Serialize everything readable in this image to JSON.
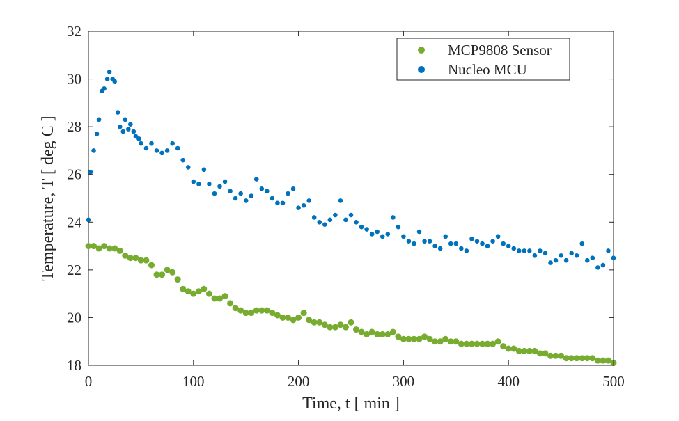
{
  "chart_data": {
    "type": "scatter",
    "xlabel": "Time, t [ min ]",
    "ylabel": "Temperature, T [ deg C ]",
    "xlim": [
      0,
      500
    ],
    "xticks": [
      0,
      100,
      200,
      300,
      400,
      500
    ],
    "ylim": [
      18,
      32
    ],
    "yticks": [
      18,
      20,
      22,
      24,
      26,
      28,
      30,
      32
    ],
    "legend": "upper right",
    "series": [
      {
        "name": "MCP9808 Sensor",
        "color": "#77ac30",
        "x": [
          0,
          5,
          10,
          15,
          20,
          25,
          30,
          35,
          40,
          45,
          50,
          55,
          60,
          65,
          70,
          75,
          80,
          85,
          90,
          95,
          100,
          105,
          110,
          115,
          120,
          125,
          130,
          135,
          140,
          145,
          150,
          155,
          160,
          165,
          170,
          175,
          180,
          185,
          190,
          195,
          200,
          205,
          210,
          215,
          220,
          225,
          230,
          235,
          240,
          245,
          250,
          255,
          260,
          265,
          270,
          275,
          280,
          285,
          290,
          295,
          300,
          305,
          310,
          315,
          320,
          325,
          330,
          335,
          340,
          345,
          350,
          355,
          360,
          365,
          370,
          375,
          380,
          385,
          390,
          395,
          400,
          405,
          410,
          415,
          420,
          425,
          430,
          435,
          440,
          445,
          450,
          455,
          460,
          465,
          470,
          475,
          480,
          485,
          490,
          495,
          500
        ],
        "values": [
          23.0,
          23.0,
          22.9,
          23.0,
          22.9,
          22.9,
          22.8,
          22.6,
          22.5,
          22.5,
          22.4,
          22.4,
          22.2,
          21.8,
          21.8,
          22.0,
          21.9,
          21.6,
          21.2,
          21.1,
          21.0,
          21.1,
          21.2,
          21.0,
          20.8,
          20.8,
          20.9,
          20.6,
          20.4,
          20.3,
          20.2,
          20.2,
          20.3,
          20.3,
          20.3,
          20.2,
          20.1,
          20.0,
          20.0,
          19.9,
          20.0,
          20.2,
          19.9,
          19.8,
          19.8,
          19.7,
          19.6,
          19.6,
          19.7,
          19.6,
          19.8,
          19.5,
          19.4,
          19.3,
          19.4,
          19.3,
          19.3,
          19.3,
          19.4,
          19.2,
          19.1,
          19.1,
          19.1,
          19.1,
          19.2,
          19.1,
          19.0,
          19.0,
          19.1,
          19.0,
          19.0,
          18.9,
          18.9,
          18.9,
          18.9,
          18.9,
          18.9,
          18.9,
          19.0,
          18.8,
          18.7,
          18.7,
          18.6,
          18.6,
          18.6,
          18.6,
          18.5,
          18.5,
          18.4,
          18.4,
          18.4,
          18.3,
          18.3,
          18.3,
          18.3,
          18.3,
          18.3,
          18.2,
          18.2,
          18.2,
          18.1
        ]
      },
      {
        "name": "Nucleo MCU",
        "color": "#0072bd",
        "x": [
          0,
          2,
          5,
          8,
          10,
          13,
          15,
          18,
          20,
          23,
          25,
          28,
          30,
          33,
          35,
          38,
          40,
          43,
          45,
          48,
          50,
          55,
          60,
          65,
          70,
          75,
          80,
          85,
          90,
          95,
          100,
          105,
          110,
          115,
          120,
          125,
          130,
          135,
          140,
          145,
          150,
          155,
          160,
          165,
          170,
          175,
          180,
          185,
          190,
          195,
          200,
          205,
          210,
          215,
          220,
          225,
          230,
          235,
          240,
          245,
          250,
          255,
          260,
          265,
          270,
          275,
          280,
          285,
          290,
          295,
          300,
          305,
          310,
          315,
          320,
          325,
          330,
          335,
          340,
          345,
          350,
          355,
          360,
          365,
          370,
          375,
          380,
          385,
          390,
          395,
          400,
          405,
          410,
          415,
          420,
          425,
          430,
          435,
          440,
          445,
          450,
          455,
          460,
          465,
          470,
          475,
          480,
          485,
          490,
          495,
          500
        ],
        "values": [
          24.1,
          26.1,
          27.0,
          27.7,
          28.3,
          29.5,
          29.6,
          30.0,
          30.3,
          30.0,
          29.9,
          28.6,
          28.0,
          27.8,
          28.3,
          27.9,
          28.1,
          27.8,
          27.6,
          27.5,
          27.3,
          27.1,
          27.3,
          27.0,
          26.9,
          27.0,
          27.3,
          27.1,
          26.6,
          26.3,
          25.7,
          25.6,
          26.2,
          25.6,
          25.2,
          25.5,
          25.7,
          25.3,
          25.0,
          25.2,
          24.9,
          25.1,
          25.8,
          25.4,
          25.3,
          25.0,
          24.8,
          24.8,
          25.2,
          25.4,
          24.6,
          24.7,
          24.9,
          24.2,
          24.0,
          23.9,
          24.1,
          24.3,
          24.9,
          24.1,
          24.3,
          24.0,
          23.8,
          23.7,
          23.5,
          23.6,
          23.4,
          23.5,
          24.2,
          23.8,
          23.4,
          23.2,
          23.1,
          23.6,
          23.2,
          23.2,
          23.0,
          22.9,
          23.4,
          23.1,
          23.1,
          22.9,
          22.8,
          23.3,
          23.2,
          23.1,
          23.0,
          23.2,
          23.4,
          23.1,
          23.0,
          22.9,
          22.8,
          22.8,
          22.8,
          22.6,
          22.8,
          22.7,
          22.3,
          22.4,
          22.6,
          22.4,
          22.7,
          22.6,
          23.1,
          22.4,
          22.5,
          22.1,
          22.2,
          22.8,
          22.5
        ]
      }
    ]
  }
}
